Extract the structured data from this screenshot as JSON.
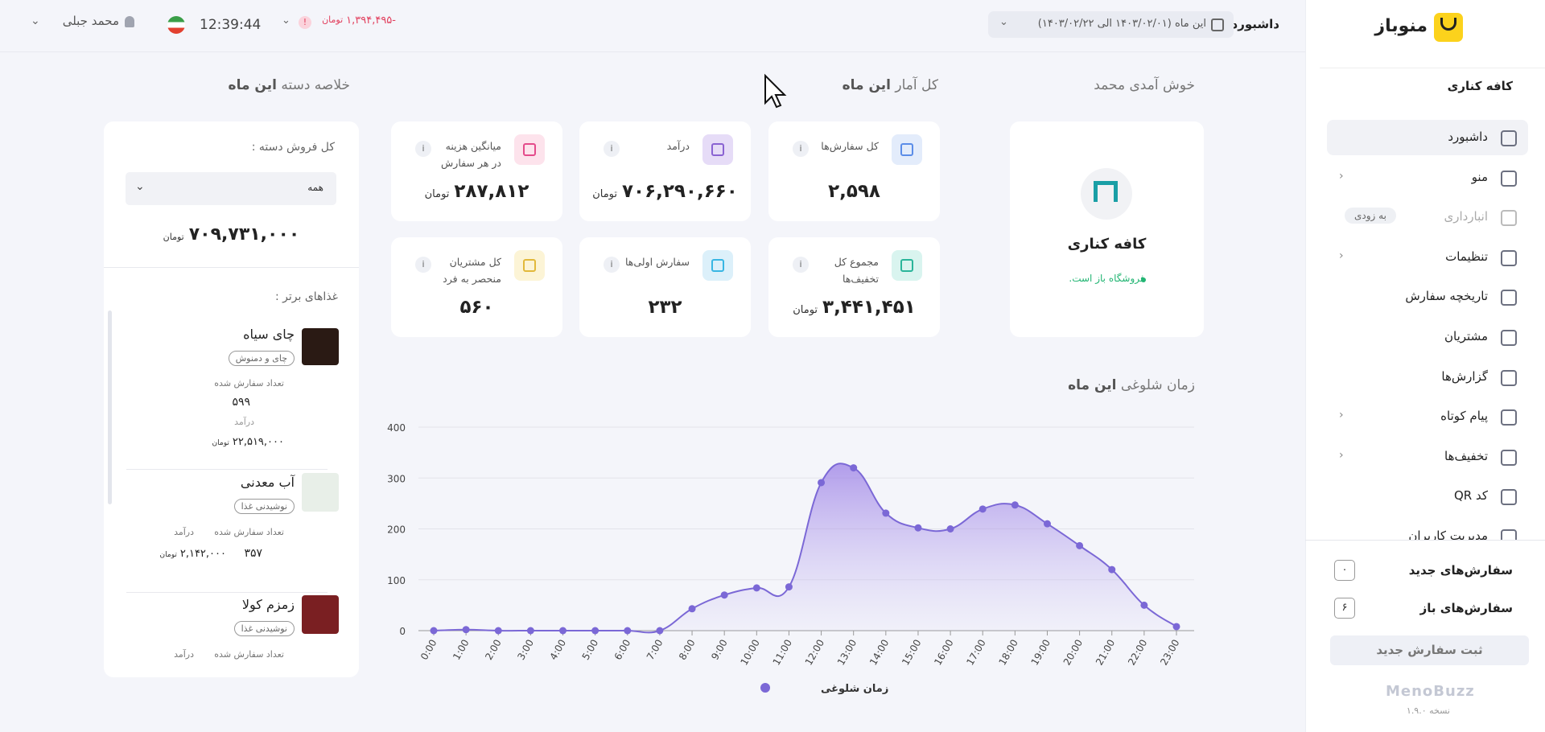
{
  "sidebar": {
    "brand": "منوباز",
    "shop": "کافه کناری",
    "menu": [
      {
        "label": "داشبورد"
      },
      {
        "label": "منو"
      },
      {
        "label": "انبارداری",
        "badge": "به زودی"
      },
      {
        "label": "تنظیمات"
      },
      {
        "label": "تاریخچه سفارش"
      },
      {
        "label": "مشتریان"
      },
      {
        "label": "گزارش‌ها"
      },
      {
        "label": "پیام کوتاه"
      },
      {
        "label": "تخفیف‌ها"
      },
      {
        "label": "کد QR"
      },
      {
        "label": "مدیریت کاربران"
      }
    ],
    "order_counts": [
      {
        "label": "سفارش‌های جدید",
        "count": "۰"
      },
      {
        "label": "سفارش‌های باز",
        "count": "۶"
      }
    ],
    "new_order_button": "ثبت سفارش جدید",
    "footer_logo": "MenoBuzz",
    "version": "نسخه ۱.۹.۰"
  },
  "header": {
    "breadcrumb": "داشبورد",
    "date_range": "این ماه (۱۴۰۳/۰۲/۰۱ الی ۱۴۰۳/۰۲/۲۲)",
    "balance": "-۱,۳۹۴,۴۹۵",
    "balance_unit": "تومان",
    "time": "12:39:44",
    "user": "محمد جبلی"
  },
  "welcome": "خوش آمدی محمد",
  "shop_card": {
    "name": "کافه کناری",
    "status": "فروشگاه باز است."
  },
  "stats": {
    "title": "کل آمار",
    "period": "این ماه",
    "cards": [
      {
        "label": "کل سفارش‌ها",
        "value": "۲,۵۹۸"
      },
      {
        "label": "درآمد",
        "value": "۷۰۶,۲۹۰,۶۶۰",
        "unit": "تومان"
      },
      {
        "label": "میانگین هزینه در هر سفارش",
        "value": "۲۸۷,۸۱۲",
        "unit": "تومان"
      },
      {
        "label": "مجموع کل تخفیف‌ها",
        "value": "۳,۴۴۱,۴۵۱",
        "unit": "تومان"
      },
      {
        "label": "سفارش اولی‌ها",
        "value": "۲۳۲"
      },
      {
        "label": "کل مشتریان منحصر به فرد",
        "value": "۵۶۰"
      }
    ]
  },
  "category_summary": {
    "title": "خلاصه دسته",
    "period": "این ماه",
    "total_label": "کل فروش دسته :",
    "select": "همه",
    "total": "۷۰۹,۷۳۱,۰۰۰",
    "total_unit": "تومان",
    "top_label": "غذاهای برتر :",
    "items": [
      {
        "name": "چای سیاه",
        "tag": "چای و دمنوش",
        "count_label": "تعداد سفارش شده",
        "count": "۵۹۹",
        "revenue_label": "درآمد",
        "revenue": "۲۲,۵۱۹,۰۰۰",
        "unit": "تومان"
      },
      {
        "name": "آب معدنی",
        "tag": "نوشیدنی غذا",
        "count_label": "تعداد سفارش شده",
        "count": "۳۵۷",
        "revenue_label": "درآمد",
        "revenue": "۲,۱۴۲,۰۰۰",
        "unit": "تومان"
      },
      {
        "name": "زمزم کولا",
        "tag": "نوشیدنی غذا",
        "count_label": "تعداد سفارش شده",
        "revenue_label": "درآمد"
      }
    ]
  },
  "busy_chart": {
    "type": "area",
    "title": "زمان شلوغی",
    "period": "این ماه",
    "categories": [
      "0:00",
      "1:00",
      "2:00",
      "3:00",
      "4:00",
      "5:00",
      "6:00",
      "7:00",
      "8:00",
      "9:00",
      "10:00",
      "11:00",
      "12:00",
      "13:00",
      "14:00",
      "15:00",
      "16:00",
      "17:00",
      "18:00",
      "19:00",
      "20:00",
      "21:00",
      "22:00",
      "23:00"
    ],
    "series": [
      {
        "name": "زمان شلوغی",
        "color": "#7b68d6",
        "values": [
          0,
          2,
          0,
          0,
          0,
          0,
          0,
          0,
          43,
          70,
          84,
          86,
          291,
          320,
          231,
          202,
          200,
          239,
          247,
          210,
          167,
          120,
          50,
          8
        ]
      }
    ],
    "ylim": [
      0,
      400
    ],
    "yticks": [
      0,
      100,
      200,
      300,
      400
    ],
    "grid": true
  }
}
